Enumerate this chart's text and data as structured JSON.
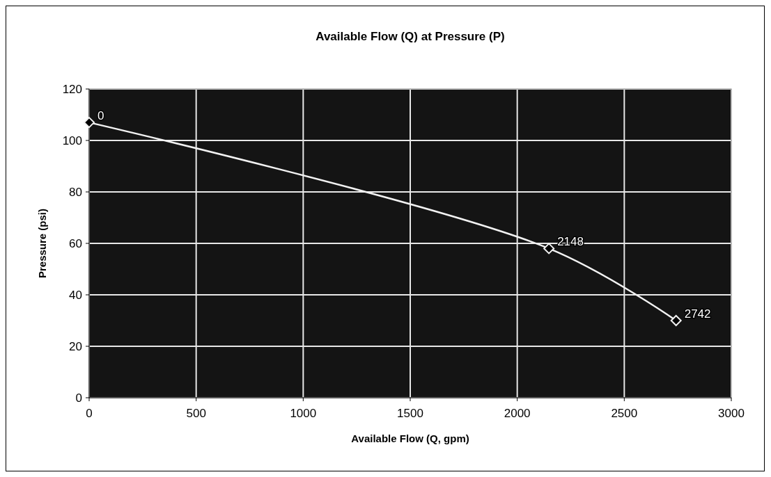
{
  "chart_data": {
    "type": "line",
    "title": "Available Flow (Q) at Pressure (P)",
    "xlabel": "Available Flow (Q, gpm)",
    "ylabel": "Pressure (psi)",
    "x": [
      0,
      2148,
      2742
    ],
    "series": [
      {
        "color": "#f2f2f2",
        "values": [
          107,
          58,
          30
        ]
      }
    ],
    "annotations": [
      {
        "text": "0",
        "x": 0,
        "y": 107
      },
      {
        "text": "2148",
        "x": 2148,
        "y": 58
      },
      {
        "text": "2742",
        "x": 2742,
        "y": 30
      }
    ],
    "xlim": [
      0,
      3000
    ],
    "xticks": [
      0,
      500,
      1000,
      1500,
      2000,
      2500,
      3000
    ],
    "ylim": [
      0,
      120
    ],
    "yticks": [
      0,
      20,
      40,
      60,
      80,
      100,
      120
    ],
    "grid": true,
    "marker": "diamond",
    "line_style": "solid"
  }
}
